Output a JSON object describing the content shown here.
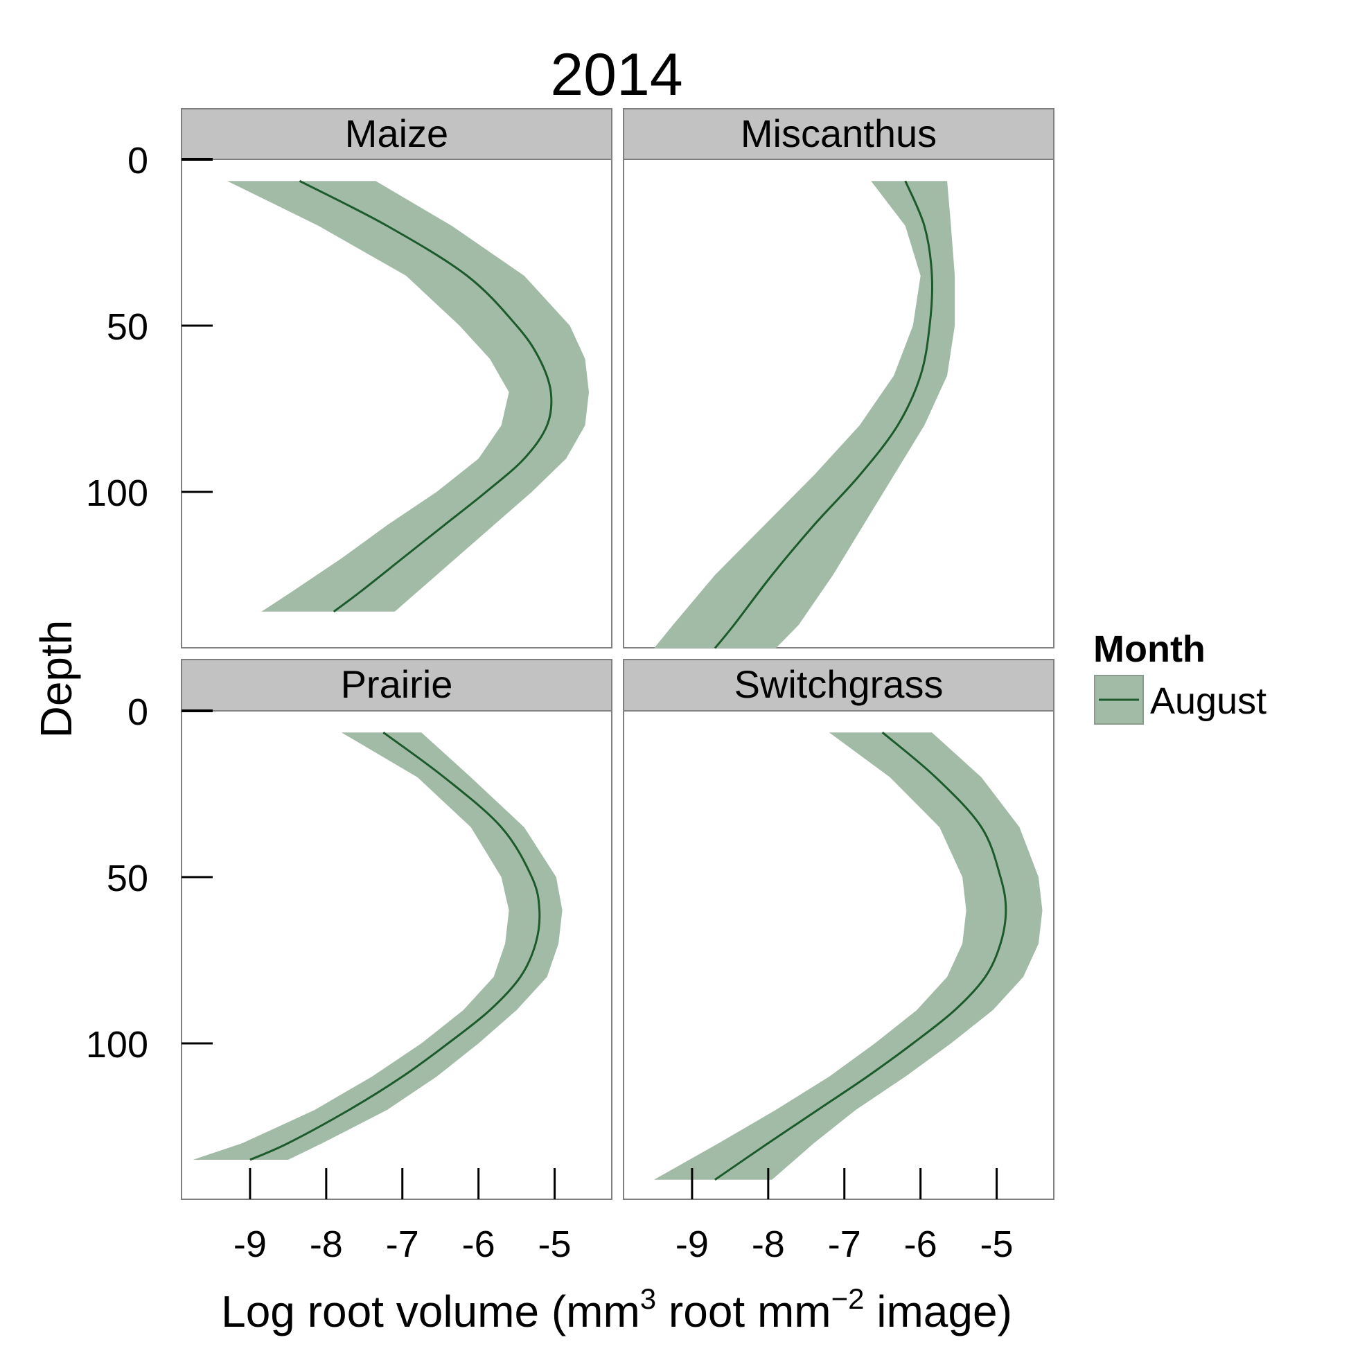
{
  "colors": {
    "band": "#a2bba6",
    "line": "#1c5a2c",
    "strip_bg": "#c2c2c2",
    "panel_border": "#7f7f7f"
  },
  "chart_data": {
    "type": "area",
    "title": "2014",
    "xlabel": {
      "main": "Log root volume (mm",
      "sup1": "3",
      "mid": " root mm",
      "sup2": "−2",
      "end": " image)"
    },
    "ylabel": "Depth",
    "xlim": [
      -9.9,
      -4.25
    ],
    "ylim": [
      147,
      0
    ],
    "xticks": [
      -9,
      -8,
      -7,
      -6,
      -5
    ],
    "xtick_labels": [
      "-9",
      "-8",
      "-7",
      "-6",
      "-5"
    ],
    "yticks": [
      0,
      50,
      100
    ],
    "ytick_labels": [
      "0",
      "50",
      "100"
    ],
    "legend": {
      "title": "Month",
      "entries": [
        "August"
      ],
      "position": "right"
    },
    "panels": [
      {
        "label": "Maize",
        "depth": [
          6.5,
          20,
          35,
          50,
          60,
          70,
          80,
          90,
          100,
          110,
          120,
          130,
          136
        ],
        "mean": [
          -8.35,
          -7.2,
          -6.15,
          -5.5,
          -5.2,
          -5.05,
          -5.1,
          -5.4,
          -5.9,
          -6.45,
          -7.0,
          -7.55,
          -7.9
        ],
        "lower": [
          -9.3,
          -8.1,
          -6.95,
          -6.25,
          -5.85,
          -5.6,
          -5.7,
          -6.0,
          -6.55,
          -7.2,
          -7.8,
          -8.45,
          -8.85
        ],
        "upper": [
          -7.35,
          -6.35,
          -5.4,
          -4.8,
          -4.6,
          -4.55,
          -4.6,
          -4.85,
          -5.3,
          -5.8,
          -6.3,
          -6.8,
          -7.1
        ]
      },
      {
        "label": "Miscanthus",
        "depth": [
          6.5,
          20,
          35,
          50,
          65,
          80,
          95,
          110,
          125,
          140,
          147
        ],
        "mean": [
          -6.2,
          -5.95,
          -5.85,
          -5.88,
          -6.0,
          -6.3,
          -6.8,
          -7.4,
          -7.95,
          -8.45,
          -8.7
        ],
        "lower": [
          -6.65,
          -6.2,
          -6.0,
          -6.1,
          -6.35,
          -6.8,
          -7.4,
          -8.05,
          -8.7,
          -9.25,
          -9.5
        ],
        "upper": [
          -5.65,
          -5.6,
          -5.55,
          -5.55,
          -5.65,
          -5.95,
          -6.35,
          -6.75,
          -7.15,
          -7.6,
          -7.9
        ]
      },
      {
        "label": "Prairie",
        "depth": [
          6.5,
          20,
          35,
          50,
          60,
          70,
          80,
          90,
          100,
          110,
          120,
          130,
          135
        ],
        "mean": [
          -7.25,
          -6.45,
          -5.7,
          -5.3,
          -5.2,
          -5.25,
          -5.45,
          -5.85,
          -6.4,
          -7.0,
          -7.7,
          -8.5,
          -9.0
        ],
        "lower": [
          -7.8,
          -6.8,
          -6.1,
          -5.7,
          -5.6,
          -5.65,
          -5.8,
          -6.2,
          -6.75,
          -7.4,
          -8.15,
          -9.1,
          -9.75
        ],
        "upper": [
          -6.75,
          -6.1,
          -5.4,
          -4.98,
          -4.9,
          -4.95,
          -5.1,
          -5.5,
          -6.0,
          -6.55,
          -7.2,
          -8.05,
          -8.5
        ]
      },
      {
        "label": "Switchgrass",
        "depth": [
          6.5,
          20,
          35,
          50,
          60,
          70,
          80,
          90,
          100,
          110,
          120,
          130,
          141
        ],
        "mean": [
          -6.5,
          -5.8,
          -5.2,
          -4.95,
          -4.88,
          -4.95,
          -5.15,
          -5.55,
          -6.1,
          -6.7,
          -7.35,
          -8.0,
          -8.7
        ],
        "lower": [
          -7.2,
          -6.4,
          -5.75,
          -5.45,
          -5.4,
          -5.45,
          -5.65,
          -6.05,
          -6.6,
          -7.2,
          -7.9,
          -8.65,
          -9.5
        ],
        "upper": [
          -5.85,
          -5.2,
          -4.7,
          -4.45,
          -4.4,
          -4.45,
          -4.65,
          -5.05,
          -5.6,
          -6.2,
          -6.85,
          -7.4,
          -7.95
        ]
      }
    ]
  }
}
